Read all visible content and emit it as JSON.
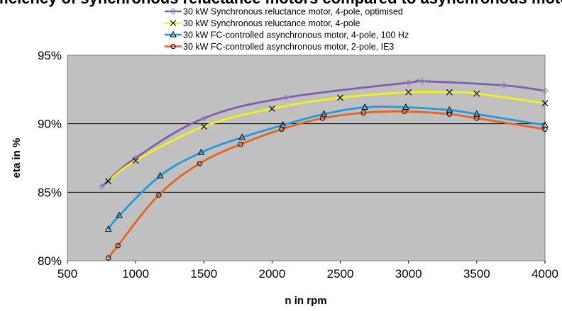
{
  "chart_data": {
    "type": "line",
    "title": "Efficiency of synchronous reluctance motors compared to asynchronous motors",
    "xlabel": "n in rpm",
    "ylabel": "eta in %",
    "xlim": [
      500,
      4000
    ],
    "ylim": [
      80,
      95
    ],
    "xticks": [
      "500",
      "1000",
      "1500",
      "2000",
      "2500",
      "3000",
      "3500",
      "4000"
    ],
    "yticks": [
      "80%",
      "85%",
      "90%",
      "95%"
    ],
    "plot_background": "#c0c0c0",
    "grid": "horizontal",
    "legend_position": "top",
    "series": [
      {
        "name": "30 kW Synchronous reluctance motor, 4-pole, optimised",
        "color": "#7f5fa8",
        "marker": "diamond",
        "points": [
          [
            750,
            85.4
          ],
          [
            1000,
            87.5
          ],
          [
            1500,
            90.4
          ],
          [
            2100,
            91.9
          ],
          [
            3000,
            93.0
          ],
          [
            3100,
            93.1
          ],
          [
            3700,
            92.8
          ],
          [
            4000,
            92.4
          ]
        ]
      },
      {
        "name": "30 kW Synchronous reluctance motor, 4-pole",
        "color": "#f2f215",
        "marker": "x",
        "points": [
          [
            800,
            85.8
          ],
          [
            1000,
            87.3
          ],
          [
            1500,
            89.8
          ],
          [
            2000,
            91.1
          ],
          [
            2500,
            91.9
          ],
          [
            3000,
            92.3
          ],
          [
            3300,
            92.3
          ],
          [
            3500,
            92.2
          ],
          [
            4000,
            91.5
          ]
        ]
      },
      {
        "name": "30 kW FC-controlled asynchronous motor, 4-pole, 100 Hz",
        "color": "#1f9be0",
        "marker": "triangle",
        "points": [
          [
            800,
            82.3
          ],
          [
            880,
            83.3
          ],
          [
            1180,
            86.2
          ],
          [
            1480,
            87.9
          ],
          [
            1780,
            89.0
          ],
          [
            2080,
            89.9
          ],
          [
            2380,
            90.7
          ],
          [
            2680,
            91.2
          ],
          [
            2980,
            91.2
          ],
          [
            3300,
            91.0
          ],
          [
            3500,
            90.7
          ],
          [
            4000,
            89.9
          ]
        ]
      },
      {
        "name": "30 kW FC-controlled asynchronous motor, 2-pole, IE3",
        "color": "#e6651e",
        "marker": "circle",
        "points": [
          [
            800,
            80.2
          ],
          [
            870,
            81.1
          ],
          [
            1170,
            84.8
          ],
          [
            1470,
            87.1
          ],
          [
            1770,
            88.5
          ],
          [
            2070,
            89.6
          ],
          [
            2370,
            90.4
          ],
          [
            2670,
            90.8
          ],
          [
            2970,
            90.9
          ],
          [
            3300,
            90.7
          ],
          [
            3500,
            90.4
          ],
          [
            4000,
            89.6
          ]
        ]
      }
    ]
  }
}
